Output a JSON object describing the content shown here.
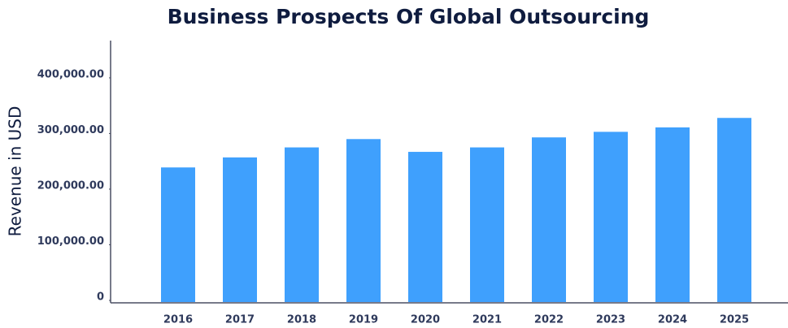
{
  "chart_data": {
    "type": "bar",
    "title": "Business Prospects Of Global Outsourcing",
    "y_label": "Revenue in USD",
    "categories": [
      "2016",
      "2017",
      "2018",
      "2019",
      "2020",
      "2021",
      "2022",
      "2023",
      "2024",
      "2025"
    ],
    "values": [
      239000,
      257000,
      275000,
      290000,
      267000,
      275000,
      293000,
      303000,
      311000,
      328000
    ],
    "color": "#3fa0fd",
    "ylim": [
      0,
      467000
    ],
    "yticks": [
      0,
      {
        "value": 100000,
        "label": "100,000.00"
      },
      {
        "value": 200000,
        "label": "200,000.00"
      },
      {
        "value": 300000,
        "label": "300,000.00"
      },
      {
        "value": 400000,
        "label": "400,000.00"
      }
    ],
    "grid": false
  }
}
